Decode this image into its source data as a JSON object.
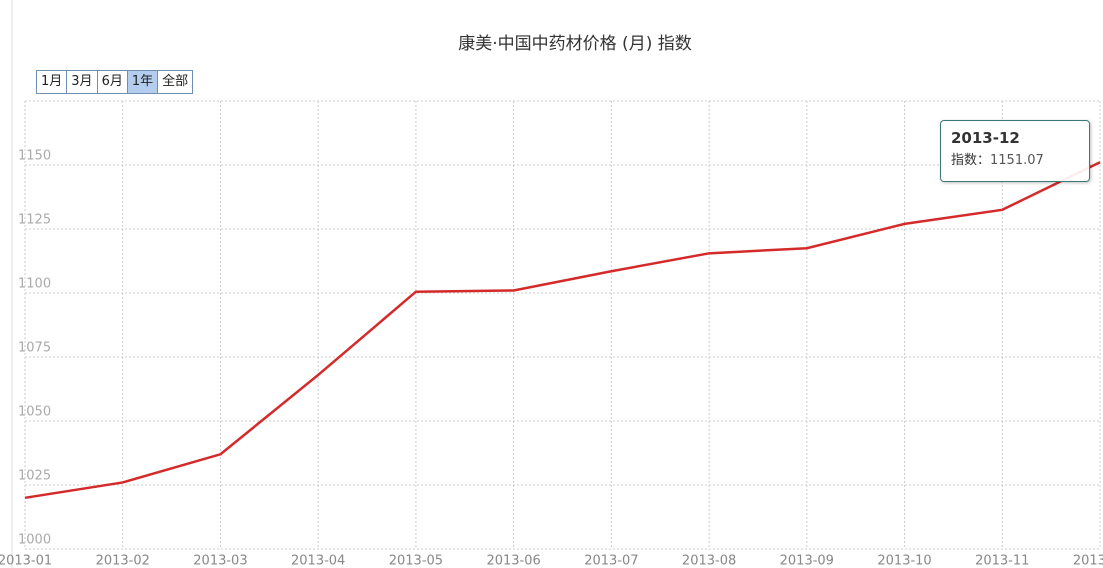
{
  "chart_data": {
    "type": "line",
    "title": "康美·中国中药材价格 (月) 指数",
    "range_buttons": [
      "1月",
      "3月",
      "6月",
      "1年",
      "全部"
    ],
    "selected_button": 3,
    "categories": [
      "2013-01",
      "2013-02",
      "2013-03",
      "2013-04",
      "2013-05",
      "2013-06",
      "2013-07",
      "2013-08",
      "2013-09",
      "2013-10",
      "2013-11",
      "2013-12"
    ],
    "series": [
      {
        "color": "#d42a2a",
        "values": [
          1020,
          1026,
          1037,
          1068,
          1100.5,
          1101,
          1108.5,
          1115.5,
          1117.5,
          1127,
          1132.5,
          1151.07
        ]
      }
    ],
    "ylim": [
      1000,
      1175
    ],
    "yticks": [
      1000,
      1025,
      1050,
      1075,
      1100,
      1125,
      1150
    ],
    "grid": true,
    "tooltip": {
      "index": 11,
      "label": "指数："
    }
  }
}
